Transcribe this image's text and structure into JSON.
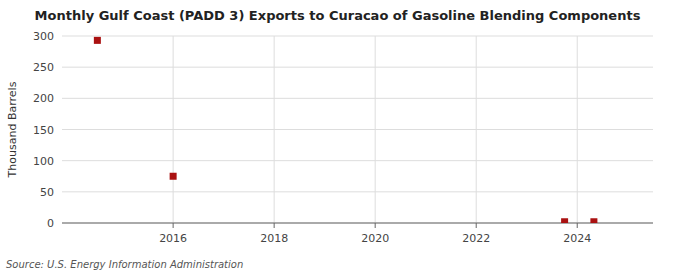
{
  "chart_data": {
    "type": "scatter",
    "title": "Monthly Gulf Coast (PADD 3) Exports to Curacao of Gasoline Blending Components",
    "y_label": "Thousand Barrels",
    "source": "Source: U.S. Energy Information Administration",
    "x": [
      2014.5,
      2016.0,
      2023.75,
      2024.33
    ],
    "values": [
      293,
      75,
      2,
      2
    ],
    "color": "#aa1111",
    "marker": "square",
    "xlim": [
      2013.8,
      2025.5
    ],
    "ylim": [
      0,
      300
    ],
    "xticks": [
      2016,
      2018,
      2020,
      2022,
      2024
    ],
    "yticks": [
      0,
      50,
      100,
      150,
      200,
      250,
      300
    ],
    "grid": true
  }
}
